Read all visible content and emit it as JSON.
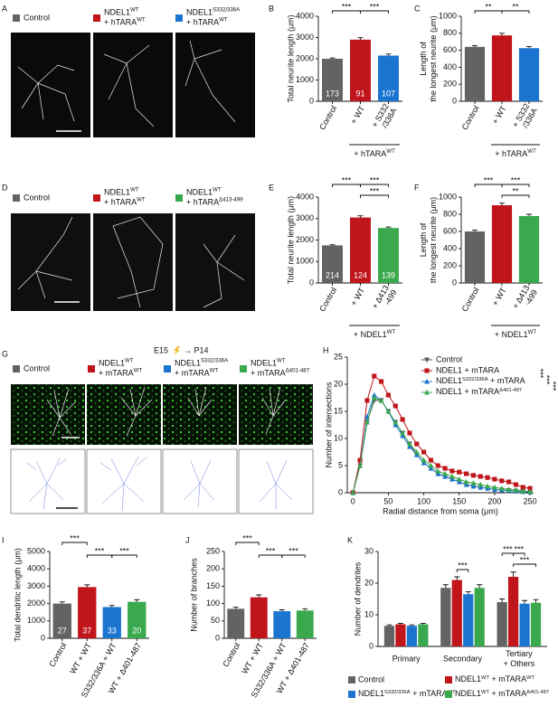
{
  "image_panels": [
    {
      "panel_label": "A",
      "legend": [
        {
          "label": "Control",
          "color": "#636363"
        },
        {
          "label": [
            [
              "NDEL1",
              "WT"
            ],
            [
              "+ hTARA",
              "WT"
            ]
          ],
          "color": "#c0151b"
        },
        {
          "label": [
            [
              "NDEL1",
              "S332/336A"
            ],
            [
              "+ hTARA",
              "WT"
            ]
          ],
          "color": "#1b75d0"
        }
      ]
    },
    {
      "panel_label": "D",
      "legend": [
        {
          "label": "Control",
          "color": "#636363"
        },
        {
          "label": [
            [
              "NDEL1",
              "WT"
            ],
            [
              "+ hTARA",
              "WT"
            ]
          ],
          "color": "#c0151b"
        },
        {
          "label": [
            [
              "NDEL1",
              "WT"
            ],
            [
              "+ hTARA",
              "Δ413-499"
            ]
          ],
          "color": "#3aa84c"
        }
      ]
    },
    {
      "panel_label": "G",
      "title": [
        "E15",
        "→ P14"
      ],
      "legend": [
        {
          "label": "Control",
          "color": "#636363"
        },
        {
          "label": [
            [
              "NDEL1",
              "WT"
            ],
            [
              "+ mTARA",
              "WT"
            ]
          ],
          "color": "#c0151b"
        },
        {
          "label": [
            [
              "NDEL1",
              "S332/336A"
            ],
            [
              "+ mTARA",
              "WT"
            ]
          ],
          "color": "#1b75d0"
        },
        {
          "label": [
            [
              "NDEL1",
              "WT"
            ],
            [
              "+ mTARA",
              "Δ401-487"
            ]
          ],
          "color": "#3aa84c"
        }
      ]
    }
  ],
  "chart_data": [
    {
      "type": "bar",
      "panel_label": "B",
      "y_label": [
        "Total neurite length (μm)"
      ],
      "categories": [
        [
          "Control"
        ],
        [
          "+ WT"
        ],
        [
          "+ S332",
          "/336A"
        ]
      ],
      "values": [
        2000,
        2900,
        2150
      ],
      "errors": [
        40,
        90,
        70
      ],
      "n_labels": [
        173,
        91,
        107
      ],
      "colors": [
        "#636363",
        "#c0151b",
        "#1b75d0"
      ],
      "ylim": [
        0,
        4000
      ],
      "yticks": [
        0,
        1000,
        2000,
        3000,
        4000
      ],
      "group_label": [
        [
          "+ hTARA",
          "WT"
        ]
      ],
      "annotations": [
        "***",
        "***"
      ]
    },
    {
      "type": "bar",
      "panel_label": "C",
      "y_label": [
        "Length of",
        "the longest neurite (μm)"
      ],
      "categories": [
        [
          "Control"
        ],
        [
          "+ WT"
        ],
        [
          "+ S332",
          "/336A"
        ]
      ],
      "values": [
        640,
        775,
        625
      ],
      "errors": [
        15,
        25,
        18
      ],
      "colors": [
        "#636363",
        "#c0151b",
        "#1b75d0"
      ],
      "ylim": [
        0,
        1000
      ],
      "yticks": [
        0,
        200,
        400,
        600,
        800,
        1000
      ],
      "group_label": [
        [
          "+ hTARA",
          "WT"
        ]
      ],
      "annotations": [
        "**",
        "**"
      ]
    },
    {
      "type": "bar",
      "panel_label": "E",
      "y_label": [
        "Total neurite length (μm)"
      ],
      "categories": [
        [
          "Control"
        ],
        [
          "+ WT"
        ],
        [
          "+ Δ413",
          "-499"
        ]
      ],
      "values": [
        1750,
        3050,
        2560
      ],
      "errors": [
        30,
        80,
        50
      ],
      "n_labels": [
        214,
        124,
        139
      ],
      "colors": [
        "#636363",
        "#c0151b",
        "#3aa84c"
      ],
      "ylim": [
        0,
        4000
      ],
      "yticks": [
        0,
        1000,
        2000,
        3000,
        4000
      ],
      "group_label": [
        [
          "+ NDEL1",
          "WT"
        ]
      ],
      "annotations": [
        "***",
        "***",
        "***"
      ]
    },
    {
      "type": "bar",
      "panel_label": "F",
      "y_label": [
        "Length of",
        "the longest neurite (μm)"
      ],
      "categories": [
        [
          "Control"
        ],
        [
          "+ WT"
        ],
        [
          "+ Δ413",
          "-499"
        ]
      ],
      "values": [
        600,
        905,
        780
      ],
      "errors": [
        15,
        25,
        20
      ],
      "colors": [
        "#636363",
        "#c0151b",
        "#3aa84c"
      ],
      "ylim": [
        0,
        1000
      ],
      "yticks": [
        0,
        200,
        400,
        600,
        800,
        1000
      ],
      "group_label": [
        [
          "+ NDEL1",
          "WT"
        ]
      ],
      "annotations": [
        "***",
        "***",
        "**"
      ]
    },
    {
      "type": "line",
      "panel_label": "H",
      "y_label": "Number of intersections",
      "x_label": "Radial distance from soma (μm)",
      "x": [
        0,
        10,
        20,
        30,
        40,
        50,
        60,
        70,
        80,
        90,
        100,
        110,
        120,
        130,
        140,
        150,
        160,
        170,
        180,
        190,
        200,
        210,
        220,
        230,
        240,
        250
      ],
      "xlim": [
        -8,
        255
      ],
      "xticks": [
        0,
        50,
        100,
        150,
        200,
        250
      ],
      "ylim": [
        0,
        25
      ],
      "yticks": [
        0,
        5,
        10,
        15,
        20,
        25
      ],
      "series": [
        {
          "name": "Control",
          "color": "#555555",
          "marker": "triangle-down",
          "values": [
            0,
            5,
            13,
            17,
            17,
            15,
            13,
            11,
            9,
            7,
            5.5,
            4.5,
            3.5,
            3,
            2.5,
            2,
            1.5,
            1.2,
            1,
            0.8,
            0.6,
            0.5,
            0.4,
            0.3,
            0.2,
            0.1
          ]
        },
        {
          "name": "NDEL1 + mTARA",
          "color": "#c0151b",
          "marker": "square",
          "values": [
            0,
            6,
            17,
            21.5,
            20.5,
            18,
            16,
            13.5,
            11,
            9,
            7.5,
            6,
            5,
            4.5,
            4,
            3.8,
            3.5,
            3.2,
            3,
            2.8,
            2.5,
            2.2,
            2,
            1.5,
            1,
            0.8
          ]
        },
        {
          "name": [
            [
              "NDEL1",
              "S332/336A",
              " + mTARA"
            ]
          ],
          "color": "#1b75d0",
          "marker": "triangle",
          "values": [
            0,
            5,
            14,
            18,
            17,
            15,
            12.5,
            10.5,
            8.5,
            7,
            5.5,
            4.5,
            3.5,
            3,
            2.5,
            2,
            1.5,
            1.2,
            1,
            0.8,
            0.6,
            0.5,
            0.4,
            0.3,
            0.2,
            0.1
          ]
        },
        {
          "name": [
            [
              "NDEL1 + mTARA",
              "Δ401-487"
            ]
          ],
          "color": "#3aa84c",
          "marker": "triangle",
          "values": [
            0,
            5,
            13,
            17.5,
            17,
            15,
            13,
            11,
            9,
            7.5,
            6,
            5,
            4,
            3.5,
            3,
            2.5,
            2,
            1.8,
            1.5,
            1.2,
            1,
            0.8,
            0.6,
            0.5,
            0.3,
            0.2
          ]
        }
      ],
      "annotations": [
        "***",
        "***",
        "***"
      ]
    },
    {
      "type": "bar",
      "panel_label": "I",
      "y_label": [
        "Total dendritic length (μm)"
      ],
      "categories": [
        [
          "Control"
        ],
        [
          "WT + WT"
        ],
        [
          "S332/336A + WT"
        ],
        [
          "WT + Δ401-487"
        ]
      ],
      "values": [
        2000,
        2950,
        1800,
        2100
      ],
      "errors": [
        100,
        130,
        90,
        120
      ],
      "n_labels": [
        27,
        37,
        33,
        20
      ],
      "colors": [
        "#636363",
        "#c0151b",
        "#1b75d0",
        "#3aa84c"
      ],
      "ylim": [
        0,
        5000
      ],
      "yticks": [
        0,
        1000,
        2000,
        3000,
        4000,
        5000
      ],
      "annotations": [
        "***",
        "***",
        "***"
      ]
    },
    {
      "type": "bar",
      "panel_label": "J",
      "y_label": [
        "Number of branches"
      ],
      "categories": [
        [
          "Control"
        ],
        [
          "WT + WT"
        ],
        [
          "S332/336A + WT"
        ],
        [
          "WT + Δ401-487"
        ]
      ],
      "values": [
        85,
        118,
        78,
        80
      ],
      "errors": [
        5,
        7,
        4,
        5
      ],
      "colors": [
        "#636363",
        "#c0151b",
        "#1b75d0",
        "#3aa84c"
      ],
      "ylim": [
        0,
        250
      ],
      "yticks": [
        0,
        50,
        100,
        150,
        200,
        250
      ],
      "annotations": [
        "***",
        "***",
        "***"
      ]
    },
    {
      "type": "bar",
      "panel_label": "K",
      "y_label": [
        "Number of dendrites"
      ],
      "categories": [
        [
          "Primary"
        ],
        [
          "Secondary"
        ],
        [
          "Tertiary",
          "+ Others"
        ]
      ],
      "ylim": [
        0,
        30
      ],
      "yticks": [
        0,
        10,
        20,
        30
      ],
      "series": [
        {
          "name": "Control",
          "color": "#636363",
          "values": [
            6.5,
            18.5,
            14
          ],
          "errors": [
            0.3,
            1,
            1
          ]
        },
        {
          "name": [
            [
              "NDEL1",
              "WT",
              " + mTARA",
              "WT"
            ]
          ],
          "color": "#c0151b",
          "values": [
            7,
            21,
            22
          ],
          "errors": [
            0.3,
            1,
            1.5
          ]
        },
        {
          "name": [
            [
              "NDEL1",
              "S332/336A",
              " + mTARA",
              "WT"
            ]
          ],
          "color": "#1b75d0",
          "values": [
            6.5,
            16.5,
            13.5
          ],
          "errors": [
            0.3,
            0.8,
            1
          ]
        },
        {
          "name": [
            [
              "NDEL1",
              "WT",
              " + mTARA",
              "Δ401-487"
            ]
          ],
          "color": "#3aa84c",
          "values": [
            7,
            18.5,
            13.8
          ],
          "errors": [
            0.3,
            1,
            1
          ]
        }
      ],
      "annotations": [
        "***",
        "***",
        "***",
        "***"
      ]
    }
  ]
}
